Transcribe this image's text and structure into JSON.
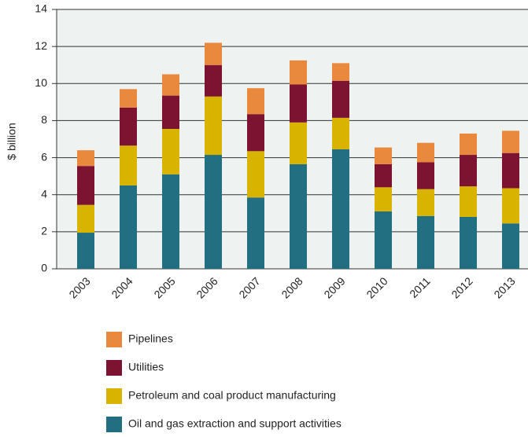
{
  "chart_data": {
    "type": "stacked_bar",
    "y_label": "$ billion",
    "categories": [
      "2003",
      "2004",
      "2005",
      "2006",
      "2007",
      "2008",
      "2009",
      "2010",
      "2011",
      "2012",
      "2013"
    ],
    "series": [
      {
        "name": "Oil and gas extraction and support activities",
        "color": "#216f80",
        "values": [
          1.95,
          4.5,
          5.1,
          6.15,
          3.85,
          5.65,
          6.45,
          3.1,
          2.85,
          2.8,
          2.45
        ]
      },
      {
        "name": "Petroleum and coal product manufacturing",
        "color": "#d8b300",
        "values": [
          1.5,
          2.15,
          2.45,
          3.15,
          2.5,
          2.25,
          1.7,
          1.3,
          1.45,
          1.65,
          1.9
        ]
      },
      {
        "name": "Utilities",
        "color": "#7b1331",
        "values": [
          2.1,
          2.05,
          1.8,
          1.7,
          2.0,
          2.05,
          2.0,
          1.25,
          1.45,
          1.7,
          1.9
        ]
      },
      {
        "name": "Pipelines",
        "color": "#e9893d",
        "values": [
          0.85,
          1.0,
          1.15,
          1.2,
          1.4,
          1.3,
          0.95,
          0.9,
          1.05,
          1.15,
          1.2
        ]
      }
    ],
    "ylim": [
      0,
      14
    ],
    "yticks": [
      0,
      2,
      4,
      6,
      8,
      10,
      12,
      14
    ],
    "grid": true,
    "legend": "bottom"
  }
}
